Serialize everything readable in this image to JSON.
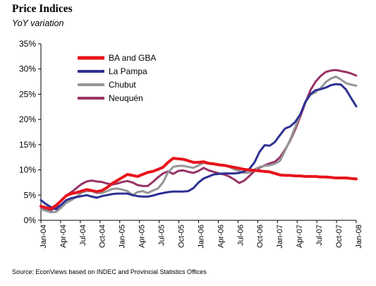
{
  "title": "Price Indices",
  "subtitle": "YoY variation",
  "source": "Source: EconViews based on INDEC and Provincial Statistics Offices",
  "chart_data": {
    "type": "line",
    "title": "Price Indices",
    "subtitle": "YoY variation",
    "xlabel": "",
    "ylabel": "",
    "ylim": [
      0,
      35
    ],
    "yticks": [
      "0%",
      "5%",
      "10%",
      "15%",
      "20%",
      "25%",
      "30%",
      "35%"
    ],
    "xticks": [
      "Jan-04",
      "Apr-04",
      "Jul-04",
      "Oct-04",
      "Jan-05",
      "Apr-05",
      "Jul-05",
      "Oct-05",
      "Jan-06",
      "Apr-06",
      "Jul-06",
      "Oct-06",
      "Jan-07",
      "Apr-07",
      "Jul-07",
      "Oct-07",
      "Jan-08"
    ],
    "x_range": [
      "2004-01",
      "2008-01"
    ],
    "grid": false,
    "legend": "top-left",
    "series": [
      {
        "name": "BA and GBA",
        "color": "#e8131b",
        "width": 4,
        "values": [
          2.8,
          2.5,
          2.3,
          3.0,
          3.9,
          4.9,
          5.3,
          5.5,
          5.8,
          6.1,
          5.9,
          5.7,
          5.9,
          6.5,
          7.3,
          7.9,
          8.5,
          9.1,
          8.9,
          8.7,
          9.1,
          9.5,
          9.7,
          10.1,
          10.5,
          11.5,
          12.3,
          12.2,
          12.1,
          11.8,
          11.5,
          11.5,
          11.6,
          11.3,
          11.2,
          11.0,
          10.9,
          10.7,
          10.5,
          10.3,
          10.1,
          10.0,
          9.9,
          9.8,
          9.7,
          9.6,
          9.3,
          9.0,
          8.9,
          8.9,
          8.8,
          8.8,
          8.7,
          8.7,
          8.7,
          8.6,
          8.6,
          8.5,
          8.4,
          8.4,
          8.4,
          8.3,
          8.2
        ]
      },
      {
        "name": "La Pampa",
        "color": "#2e3192",
        "width": 3,
        "values": [
          4.0,
          3.2,
          2.6,
          2.2,
          3.1,
          4.0,
          4.4,
          4.6,
          4.8,
          5.0,
          4.7,
          4.5,
          4.8,
          5.0,
          5.2,
          5.3,
          5.3,
          5.3,
          5.0,
          4.8,
          4.7,
          4.7,
          4.9,
          5.2,
          5.4,
          5.6,
          5.7,
          5.7,
          5.7,
          5.8,
          6.4,
          7.5,
          8.3,
          8.7,
          9.1,
          9.2,
          9.3,
          9.3,
          9.3,
          9.4,
          9.7,
          10.2,
          11.5,
          13.6,
          14.9,
          14.8,
          15.5,
          16.9,
          18.2,
          18.6,
          19.5,
          21.0,
          23.5,
          25.0,
          25.8,
          26.0,
          26.3,
          26.8,
          27.0,
          26.9,
          25.9,
          24.2,
          22.6
        ]
      },
      {
        "name": "Chubut",
        "color": "#969696",
        "width": 3,
        "values": [
          2.2,
          1.9,
          1.6,
          1.7,
          2.5,
          3.5,
          4.0,
          4.7,
          5.5,
          5.8,
          5.8,
          5.4,
          5.4,
          5.8,
          6.2,
          6.3,
          6.1,
          5.8,
          5.0,
          5.6,
          5.8,
          5.4,
          5.9,
          6.3,
          7.5,
          9.5,
          10.6,
          10.8,
          10.8,
          10.6,
          10.4,
          10.9,
          11.4,
          11.2,
          11.1,
          10.9,
          11.0,
          10.6,
          10.1,
          9.8,
          9.4,
          9.5,
          10.1,
          10.6,
          10.8,
          10.9,
          11.2,
          11.8,
          13.8,
          16.0,
          18.5,
          21.0,
          23.4,
          24.9,
          25.4,
          26.2,
          27.4,
          28.1,
          28.5,
          27.9,
          27.2,
          26.9,
          26.7
        ]
      },
      {
        "name": "Neuquén",
        "color": "#993366",
        "width": 3,
        "values": [
          2.3,
          2.1,
          2.0,
          2.6,
          4.0,
          4.9,
          5.6,
          6.4,
          7.2,
          7.7,
          7.9,
          7.7,
          7.6,
          7.3,
          7.1,
          7.3,
          7.6,
          7.8,
          7.5,
          7.0,
          6.8,
          6.8,
          7.6,
          8.5,
          9.3,
          9.7,
          9.2,
          9.8,
          9.9,
          9.6,
          9.4,
          9.8,
          10.4,
          9.9,
          9.6,
          9.3,
          9.1,
          8.7,
          8.1,
          7.4,
          7.9,
          8.8,
          9.8,
          10.4,
          10.9,
          11.3,
          11.6,
          12.5,
          14.0,
          15.8,
          18.0,
          20.6,
          23.3,
          25.8,
          27.5,
          28.6,
          29.4,
          29.7,
          29.8,
          29.6,
          29.4,
          29.1,
          28.7
        ]
      }
    ]
  }
}
